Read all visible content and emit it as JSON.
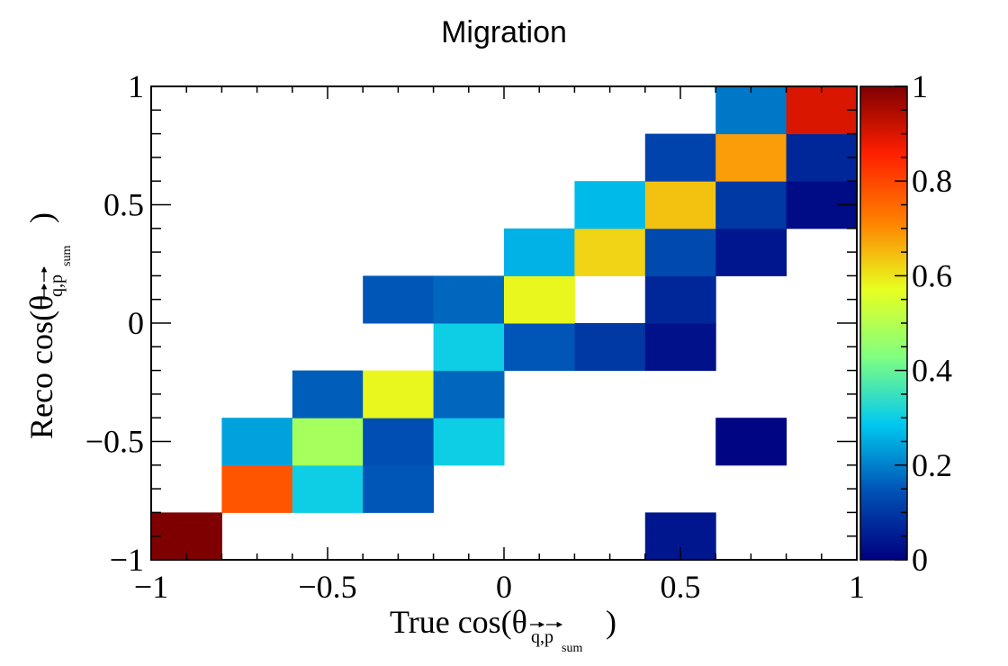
{
  "chart_data": {
    "type": "heatmap",
    "title": "Migration",
    "xlabel": {
      "prefix": "True cos(θ",
      "subscript": "q,p",
      "subsubscript": "sum",
      "suffix": ")"
    },
    "ylabel": {
      "prefix": "Reco cos(θ",
      "subscript": "q,p",
      "subsubscript": "sum",
      "suffix": ")"
    },
    "xlim": [
      -1,
      1
    ],
    "ylim": [
      -1,
      1
    ],
    "x_bin_edges": [
      -1.0,
      -0.8,
      -0.6,
      -0.4,
      -0.2,
      0.0,
      0.2,
      0.4,
      0.6,
      0.8,
      1.0
    ],
    "y_bin_edges": [
      -1.0,
      -0.8,
      -0.6,
      -0.4,
      -0.2,
      0.0,
      0.2,
      0.4,
      0.6,
      0.8,
      1.0
    ],
    "x_ticks": [
      "−1",
      "−0.5",
      "0",
      "0.5",
      "1"
    ],
    "y_ticks": [
      "−1",
      "−0.5",
      "0",
      "0.5",
      "1"
    ],
    "colorbar": {
      "range": [
        0,
        1
      ],
      "ticks": [
        "0",
        "0.2",
        "0.4",
        "0.6",
        "0.8",
        "1"
      ],
      "palette": [
        "#00007f",
        "#0050b4",
        "#00c8f0",
        "#80ff80",
        "#e8ff20",
        "#ff8000",
        "#ff2000",
        "#7f0000"
      ]
    },
    "cells": [
      {
        "x": -0.9,
        "y": -0.9,
        "value": 1.0
      },
      {
        "x": -0.7,
        "y": -0.7,
        "value": 0.78
      },
      {
        "x": -0.5,
        "y": -0.7,
        "value": 0.3
      },
      {
        "x": -0.3,
        "y": -0.7,
        "value": 0.15
      },
      {
        "x": -0.7,
        "y": -0.5,
        "value": 0.24
      },
      {
        "x": -0.5,
        "y": -0.5,
        "value": 0.48
      },
      {
        "x": -0.3,
        "y": -0.5,
        "value": 0.14
      },
      {
        "x": -0.1,
        "y": -0.5,
        "value": 0.3
      },
      {
        "x": 0.7,
        "y": -0.5,
        "value": 0.01
      },
      {
        "x": -0.5,
        "y": -0.3,
        "value": 0.16
      },
      {
        "x": -0.3,
        "y": -0.3,
        "value": 0.58
      },
      {
        "x": -0.1,
        "y": -0.3,
        "value": 0.17
      },
      {
        "x": -0.1,
        "y": -0.1,
        "value": 0.3
      },
      {
        "x": 0.1,
        "y": -0.1,
        "value": 0.15
      },
      {
        "x": 0.3,
        "y": -0.1,
        "value": 0.1
      },
      {
        "x": 0.5,
        "y": -0.1,
        "value": 0.03
      },
      {
        "x": -0.3,
        "y": 0.1,
        "value": 0.15
      },
      {
        "x": -0.1,
        "y": 0.1,
        "value": 0.17
      },
      {
        "x": 0.1,
        "y": 0.1,
        "value": 0.58
      },
      {
        "x": 0.5,
        "y": 0.1,
        "value": 0.07
      },
      {
        "x": 0.1,
        "y": 0.3,
        "value": 0.26
      },
      {
        "x": 0.3,
        "y": 0.3,
        "value": 0.62
      },
      {
        "x": 0.5,
        "y": 0.3,
        "value": 0.13
      },
      {
        "x": 0.7,
        "y": 0.3,
        "value": 0.04
      },
      {
        "x": 0.3,
        "y": 0.5,
        "value": 0.27
      },
      {
        "x": 0.5,
        "y": 0.5,
        "value": 0.64
      },
      {
        "x": 0.7,
        "y": 0.5,
        "value": 0.1
      },
      {
        "x": 0.9,
        "y": 0.5,
        "value": 0.02
      },
      {
        "x": 0.5,
        "y": 0.7,
        "value": 0.12
      },
      {
        "x": 0.7,
        "y": 0.7,
        "value": 0.68
      },
      {
        "x": 0.9,
        "y": 0.7,
        "value": 0.07
      },
      {
        "x": 0.7,
        "y": 0.9,
        "value": 0.19
      },
      {
        "x": 0.9,
        "y": 0.9,
        "value": 0.9
      },
      {
        "x": 0.5,
        "y": -0.9,
        "value": 0.04
      }
    ]
  }
}
